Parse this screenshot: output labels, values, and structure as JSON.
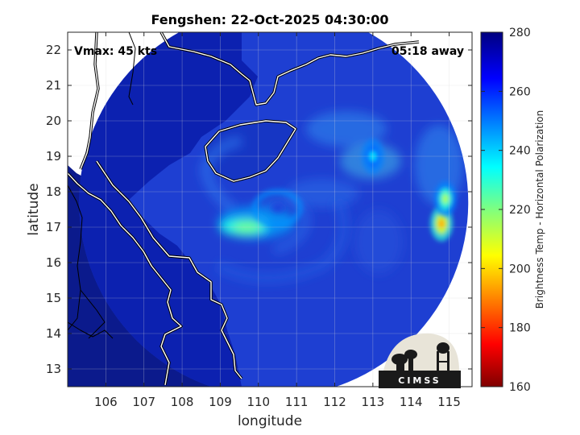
{
  "chart_data": {
    "type": "heatmap",
    "title": "Fengshen: 22-Oct-2025 04:30:00",
    "xlabel": "longitude",
    "ylabel": "latitude",
    "x_ticks": [
      "106",
      "107",
      "108",
      "109",
      "110",
      "111",
      "112",
      "113",
      "114",
      "115"
    ],
    "y_ticks": [
      "22",
      "21",
      "20",
      "19",
      "18",
      "17",
      "16",
      "15",
      "14",
      "13"
    ],
    "xlim": [
      105.0,
      115.6
    ],
    "ylim": [
      12.5,
      22.5
    ],
    "grid": true,
    "annotations": {
      "vmax": "Vmax: 45 kts",
      "time_away": "05:18 away"
    },
    "colorbar": {
      "label": "Brightness Temp - Horizontal Polarization",
      "ticks": [
        "280",
        "260",
        "240",
        "220",
        "200",
        "180",
        "160"
      ],
      "range": [
        160,
        280
      ],
      "colormap": "jet"
    },
    "storm_center": {
      "lon": 110.5,
      "lat": 17.2
    },
    "warm_band": {
      "lon": 109.7,
      "lat": 17.0,
      "value_min": 222
    },
    "cold_cells": [
      {
        "lon": 114.8,
        "lat": 17.1,
        "value_min": 195
      },
      {
        "lon": 114.9,
        "lat": 17.8,
        "value_min": 215
      },
      {
        "lon": 113.0,
        "lat": 19.0,
        "value_min": 238
      }
    ],
    "swath": {
      "center_lon": 110.4,
      "center_lat": 17.7,
      "radius_deg": 5.1
    },
    "coastline_color": "#ffffff",
    "border_color": "#000000"
  },
  "logo": {
    "text": "CIMSS"
  }
}
